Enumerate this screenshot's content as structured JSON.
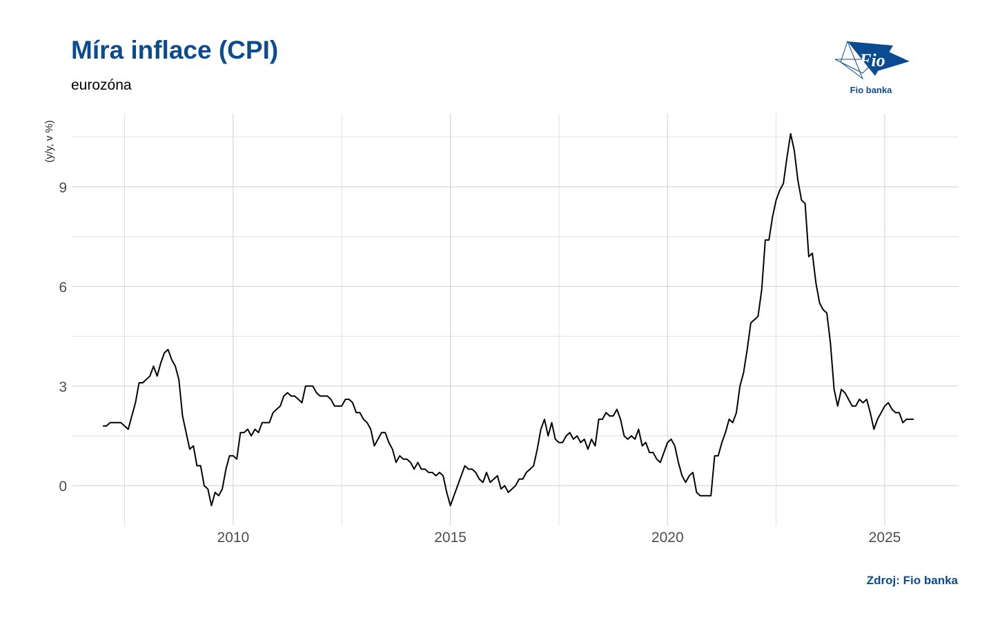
{
  "title": "Míra inflace (CPI)",
  "subtitle": "eurozóna",
  "source": "Zdroj: Fio banka",
  "logo": {
    "icon": "fio-logo-icon",
    "text": "Fio banka",
    "mark": "Fio",
    "color": "#0b4b8f"
  },
  "chart_data": {
    "type": "line",
    "title": "Míra inflace (CPI)",
    "subtitle": "eurozóna",
    "xlabel": "",
    "ylabel": "(y/y, v %)",
    "x_ticks": [
      2010,
      2015,
      2020,
      2025
    ],
    "y_ticks": [
      0,
      3,
      6,
      9
    ],
    "xlim": [
      2006.3,
      2026.7
    ],
    "ylim": [
      -1.2,
      11.2
    ],
    "grid": true,
    "line_color": "#000000",
    "x_start": "2007-01",
    "frequency": "monthly",
    "series": [
      {
        "values": [
          1.8,
          1.8,
          1.9,
          1.9,
          1.9,
          1.9,
          1.8,
          1.7,
          2.1,
          2.5,
          3.1,
          3.1,
          3.2,
          3.3,
          3.6,
          3.3,
          3.7,
          4.0,
          4.1,
          3.8,
          3.6,
          3.2,
          2.1,
          1.6,
          1.1,
          1.2,
          0.6,
          0.6,
          0.0,
          -0.1,
          -0.6,
          -0.2,
          -0.3,
          -0.1,
          0.5,
          0.9,
          0.9,
          0.8,
          1.6,
          1.6,
          1.7,
          1.5,
          1.7,
          1.6,
          1.9,
          1.9,
          1.9,
          2.2,
          2.3,
          2.4,
          2.7,
          2.8,
          2.7,
          2.7,
          2.6,
          2.5,
          3.0,
          3.0,
          3.0,
          2.8,
          2.7,
          2.7,
          2.7,
          2.6,
          2.4,
          2.4,
          2.4,
          2.6,
          2.6,
          2.5,
          2.2,
          2.2,
          2.0,
          1.9,
          1.7,
          1.2,
          1.4,
          1.6,
          1.6,
          1.3,
          1.1,
          0.7,
          0.9,
          0.8,
          0.8,
          0.7,
          0.5,
          0.7,
          0.5,
          0.5,
          0.4,
          0.4,
          0.3,
          0.4,
          0.3,
          -0.2,
          -0.6,
          -0.3,
          0.0,
          0.3,
          0.6,
          0.5,
          0.5,
          0.4,
          0.2,
          0.1,
          0.4,
          0.1,
          0.2,
          0.3,
          -0.1,
          0.0,
          -0.2,
          -0.1,
          0.0,
          0.2,
          0.2,
          0.4,
          0.5,
          0.6,
          1.1,
          1.7,
          2.0,
          1.5,
          1.9,
          1.4,
          1.3,
          1.3,
          1.5,
          1.6,
          1.4,
          1.5,
          1.3,
          1.4,
          1.1,
          1.4,
          1.2,
          2.0,
          2.0,
          2.2,
          2.1,
          2.1,
          2.3,
          2.0,
          1.5,
          1.4,
          1.5,
          1.4,
          1.7,
          1.2,
          1.3,
          1.0,
          1.0,
          0.8,
          0.7,
          1.0,
          1.3,
          1.4,
          1.2,
          0.7,
          0.3,
          0.1,
          0.3,
          0.4,
          -0.2,
          -0.3,
          -0.3,
          -0.3,
          -0.3,
          0.9,
          0.9,
          1.3,
          1.6,
          2.0,
          1.9,
          2.2,
          3.0,
          3.4,
          4.1,
          4.9,
          5.0,
          5.1,
          5.9,
          7.4,
          7.4,
          8.1,
          8.6,
          8.9,
          9.1,
          9.9,
          10.6,
          10.1,
          9.2,
          8.6,
          8.5,
          6.9,
          7.0,
          6.1,
          5.5,
          5.3,
          5.2,
          4.3,
          2.9,
          2.4,
          2.9,
          2.8,
          2.6,
          2.4,
          2.4,
          2.6,
          2.5,
          2.6,
          2.2,
          1.7,
          2.0,
          2.2,
          2.4,
          2.5,
          2.3,
          2.2,
          2.2,
          1.9,
          2.0,
          2.0,
          2.0
        ]
      }
    ]
  }
}
